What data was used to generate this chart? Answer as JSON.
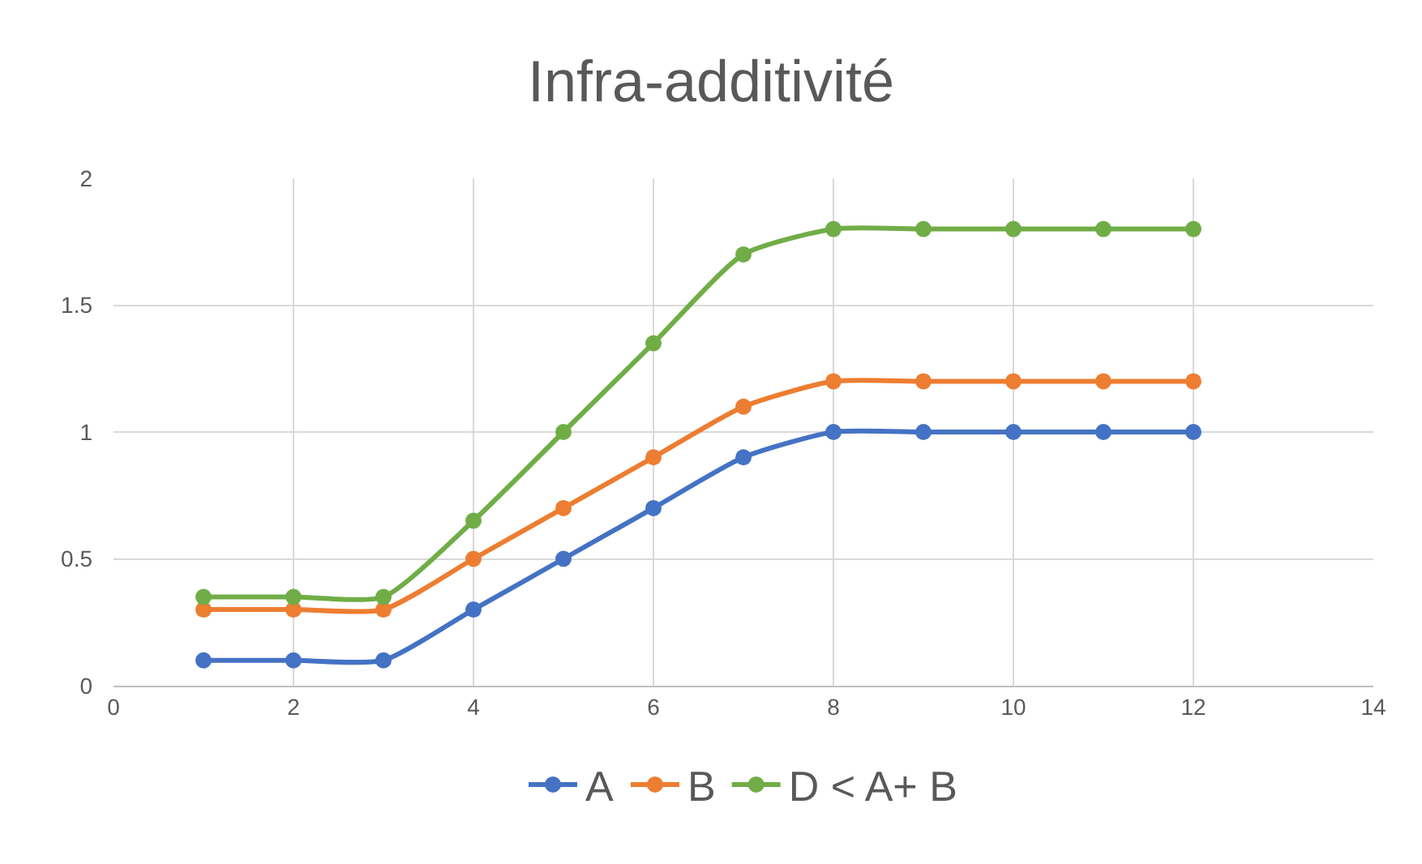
{
  "chart_data": {
    "type": "line",
    "title": "Infra-additivité",
    "x": [
      1,
      2,
      3,
      4,
      5,
      6,
      7,
      8,
      9,
      10,
      11,
      12
    ],
    "series": [
      {
        "name": "A",
        "color": "#4472c4",
        "values": [
          0.1,
          0.1,
          0.1,
          0.3,
          0.5,
          0.7,
          0.9,
          1,
          1,
          1,
          1,
          1
        ]
      },
      {
        "name": "B",
        "color": "#ed7d31",
        "values": [
          0.3,
          0.3,
          0.3,
          0.5,
          0.7,
          0.9,
          1.1,
          1.2,
          1.2,
          1.2,
          1.2,
          1.2
        ]
      },
      {
        "name": "D < A+ B",
        "color": "#70ad47",
        "values": [
          0.35,
          0.35,
          0.35,
          0.65,
          1.0,
          1.35,
          1.7,
          1.8,
          1.8,
          1.8,
          1.8,
          1.8
        ]
      }
    ],
    "xlim": [
      0,
      14
    ],
    "xticks": [
      0,
      2,
      4,
      6,
      8,
      10,
      12,
      14
    ],
    "ylim": [
      0,
      2
    ],
    "yticks": [
      0,
      0.5,
      1,
      1.5,
      2
    ],
    "grid": true,
    "legend": "bottom",
    "marker": "circle",
    "line_style": "solid"
  }
}
